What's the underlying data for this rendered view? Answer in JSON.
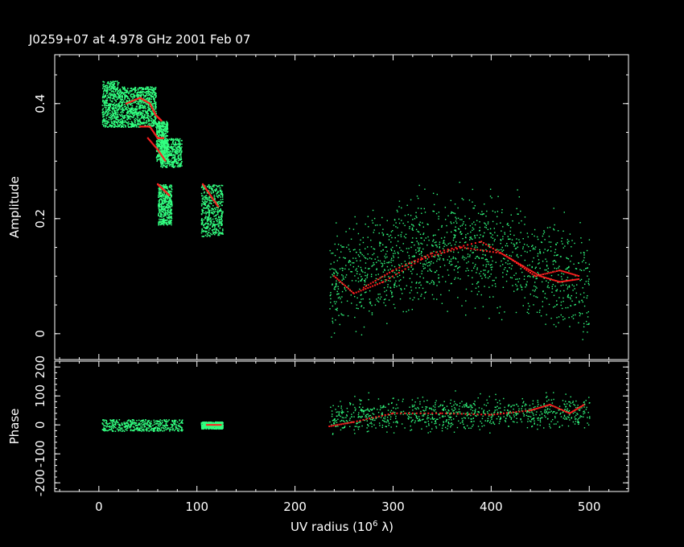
{
  "chart_data": [
    {
      "panel": "amplitude",
      "type": "scatter",
      "title": "J0259+07 at 4.978 GHz 2001 Feb 07",
      "xlabel_main": "UV radius",
      "xlabel_unit_base": "(10",
      "xlabel_unit_exp": "6",
      "xlabel_unit_lambda": "λ)",
      "ylabel": "Amplitude",
      "xlim": [
        -45,
        540
      ],
      "ylim": [
        -0.045,
        0.485
      ],
      "x_ticks": [
        0,
        100,
        200,
        300,
        400,
        500
      ],
      "y_ticks": [
        0,
        0.2,
        0.4
      ],
      "y_tick_labels": [
        "0",
        "0.2",
        "0.4"
      ],
      "grid": false,
      "series": [
        {
          "role": "data",
          "color": "#32ff80",
          "clusters": [
            {
              "x": [
                3,
                20
              ],
              "y": [
                0.36,
                0.44
              ]
            },
            {
              "x": [
                20,
                40
              ],
              "y": [
                0.36,
                0.43
              ]
            },
            {
              "x": [
                40,
                58
              ],
              "y": [
                0.36,
                0.43
              ]
            },
            {
              "x": [
                58,
                70
              ],
              "y": [
                0.3,
                0.37
              ]
            },
            {
              "x": [
                62,
                84
              ],
              "y": [
                0.29,
                0.34
              ]
            },
            {
              "x": [
                60,
                74
              ],
              "y": [
                0.19,
                0.26
              ]
            },
            {
              "x": [
                104,
                126
              ],
              "y": [
                0.17,
                0.26
              ]
            },
            {
              "x": [
                235,
                500
              ],
              "y": [
                0.02,
                0.28
              ]
            }
          ]
        },
        {
          "role": "model",
          "color": "#ff2020",
          "tracks": [
            [
              [
                28,
                0.4
              ],
              [
                42,
                0.41
              ],
              [
                52,
                0.4
              ],
              [
                58,
                0.38
              ],
              [
                64,
                0.37
              ]
            ],
            [
              [
                42,
                0.36
              ],
              [
                52,
                0.36
              ],
              [
                60,
                0.34
              ],
              [
                66,
                0.34
              ]
            ],
            [
              [
                50,
                0.34
              ],
              [
                60,
                0.32
              ],
              [
                68,
                0.3
              ]
            ],
            [
              [
                60,
                0.26
              ],
              [
                66,
                0.25
              ],
              [
                72,
                0.24
              ]
            ],
            [
              [
                106,
                0.26
              ],
              [
                114,
                0.24
              ],
              [
                122,
                0.22
              ]
            ],
            [
              [
                240,
                0.1
              ],
              [
                260,
                0.07
              ],
              [
                290,
                0.09
              ],
              [
                330,
                0.13
              ],
              [
                370,
                0.15
              ],
              [
                410,
                0.14
              ],
              [
                430,
                0.12
              ],
              [
                450,
                0.1
              ],
              [
                470,
                0.09
              ],
              [
                490,
                0.095
              ]
            ],
            [
              [
                270,
                0.08
              ],
              [
                300,
                0.11
              ],
              [
                340,
                0.14
              ],
              [
                390,
                0.16
              ],
              [
                420,
                0.13
              ],
              [
                445,
                0.1
              ],
              [
                470,
                0.11
              ],
              [
                490,
                0.1
              ]
            ]
          ]
        }
      ]
    },
    {
      "panel": "phase",
      "type": "scatter",
      "ylabel": "Phase",
      "xlim": [
        -45,
        540
      ],
      "ylim": [
        -230,
        220
      ],
      "x_ticks": [
        0,
        100,
        200,
        300,
        400,
        500
      ],
      "x_tick_labels": [
        "0",
        "100",
        "200",
        "300",
        "400",
        "500"
      ],
      "y_ticks": [
        -200,
        -100,
        0,
        100,
        200
      ],
      "y_tick_labels": [
        "-200",
        "-100",
        "0",
        "100",
        "200"
      ],
      "grid": false,
      "series": [
        {
          "role": "data",
          "color": "#32ff80",
          "clusters": [
            {
              "x": [
                3,
                85
              ],
              "y": [
                -20,
                20
              ]
            },
            {
              "x": [
                104,
                126
              ],
              "y": [
                -12,
                12
              ]
            },
            {
              "x": [
                235,
                500
              ],
              "y": [
                -60,
                130
              ]
            }
          ]
        },
        {
          "role": "model",
          "color": "#ff2020",
          "tracks": [
            [
              [
                110,
                0
              ],
              [
                125,
                0
              ]
            ],
            [
              [
                235,
                -5
              ],
              [
                260,
                10
              ],
              [
                300,
                40
              ],
              [
                350,
                40
              ],
              [
                400,
                35
              ],
              [
                440,
                50
              ],
              [
                460,
                70
              ],
              [
                480,
                40
              ],
              [
                495,
                70
              ]
            ]
          ]
        }
      ]
    }
  ]
}
